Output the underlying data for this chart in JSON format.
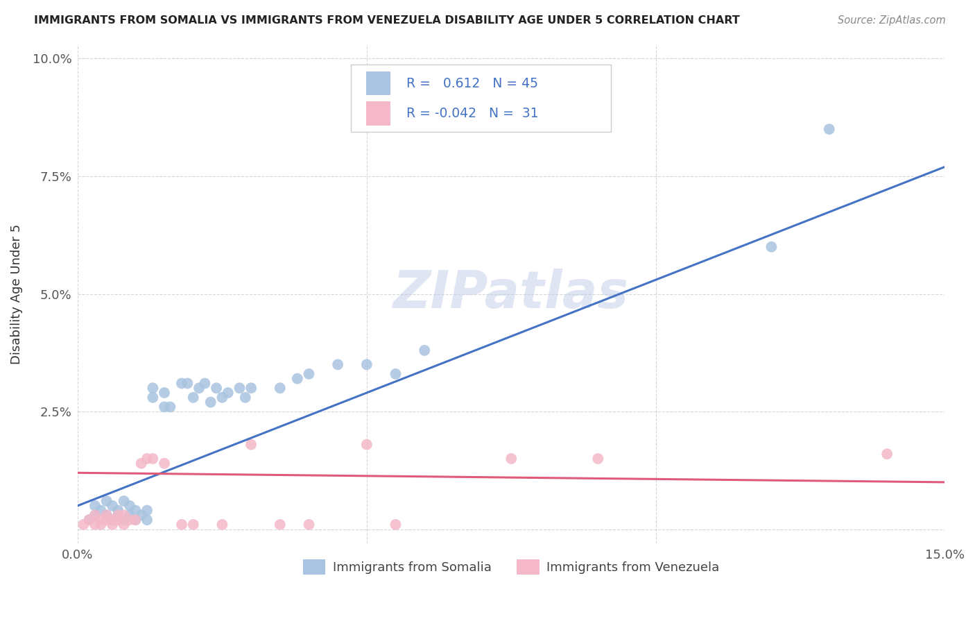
{
  "title": "IMMIGRANTS FROM SOMALIA VS IMMIGRANTS FROM VENEZUELA DISABILITY AGE UNDER 5 CORRELATION CHART",
  "source": "Source: ZipAtlas.com",
  "ylabel": "Disability Age Under 5",
  "xlim": [
    0.0,
    0.15
  ],
  "ylim": [
    -0.003,
    0.103
  ],
  "somalia_R": 0.612,
  "somalia_N": 45,
  "venezuela_R": -0.042,
  "venezuela_N": 31,
  "somalia_color": "#a8c4e0",
  "venezuela_color": "#f4b8c8",
  "somalia_line_color": "#4472c4",
  "venezuela_line_color": "#e05a7a",
  "watermark_text": "ZIPatlas",
  "watermark_color": "#c0cce8",
  "somalia_scatter": [
    [
      0.002,
      0.002
    ],
    [
      0.003,
      0.003
    ],
    [
      0.003,
      0.005
    ],
    [
      0.004,
      0.004
    ],
    [
      0.005,
      0.003
    ],
    [
      0.005,
      0.006
    ],
    [
      0.006,
      0.002
    ],
    [
      0.006,
      0.005
    ],
    [
      0.007,
      0.003
    ],
    [
      0.007,
      0.004
    ],
    [
      0.008,
      0.002
    ],
    [
      0.008,
      0.006
    ],
    [
      0.009,
      0.003
    ],
    [
      0.009,
      0.005
    ],
    [
      0.01,
      0.002
    ],
    [
      0.01,
      0.004
    ],
    [
      0.011,
      0.003
    ],
    [
      0.012,
      0.002
    ],
    [
      0.012,
      0.004
    ],
    [
      0.013,
      0.028
    ],
    [
      0.013,
      0.03
    ],
    [
      0.015,
      0.026
    ],
    [
      0.015,
      0.029
    ],
    [
      0.016,
      0.026
    ],
    [
      0.018,
      0.031
    ],
    [
      0.019,
      0.031
    ],
    [
      0.02,
      0.028
    ],
    [
      0.021,
      0.03
    ],
    [
      0.022,
      0.031
    ],
    [
      0.023,
      0.027
    ],
    [
      0.024,
      0.03
    ],
    [
      0.025,
      0.028
    ],
    [
      0.026,
      0.029
    ],
    [
      0.028,
      0.03
    ],
    [
      0.029,
      0.028
    ],
    [
      0.03,
      0.03
    ],
    [
      0.035,
      0.03
    ],
    [
      0.038,
      0.032
    ],
    [
      0.04,
      0.033
    ],
    [
      0.045,
      0.035
    ],
    [
      0.05,
      0.035
    ],
    [
      0.055,
      0.033
    ],
    [
      0.06,
      0.038
    ],
    [
      0.12,
      0.06
    ],
    [
      0.13,
      0.085
    ]
  ],
  "venezuela_scatter": [
    [
      0.001,
      0.001
    ],
    [
      0.002,
      0.002
    ],
    [
      0.003,
      0.001
    ],
    [
      0.003,
      0.003
    ],
    [
      0.004,
      0.002
    ],
    [
      0.004,
      0.001
    ],
    [
      0.005,
      0.002
    ],
    [
      0.005,
      0.003
    ],
    [
      0.006,
      0.001
    ],
    [
      0.006,
      0.002
    ],
    [
      0.007,
      0.002
    ],
    [
      0.007,
      0.003
    ],
    [
      0.008,
      0.001
    ],
    [
      0.008,
      0.003
    ],
    [
      0.009,
      0.002
    ],
    [
      0.01,
      0.002
    ],
    [
      0.011,
      0.014
    ],
    [
      0.012,
      0.015
    ],
    [
      0.013,
      0.015
    ],
    [
      0.015,
      0.014
    ],
    [
      0.018,
      0.001
    ],
    [
      0.02,
      0.001
    ],
    [
      0.025,
      0.001
    ],
    [
      0.03,
      0.018
    ],
    [
      0.035,
      0.001
    ],
    [
      0.04,
      0.001
    ],
    [
      0.05,
      0.018
    ],
    [
      0.055,
      0.001
    ],
    [
      0.075,
      0.015
    ],
    [
      0.09,
      0.015
    ],
    [
      0.14,
      0.016
    ]
  ],
  "somalia_line": [
    0.0,
    0.15
  ],
  "somalia_line_y": [
    0.005,
    0.077
  ],
  "venezuela_line": [
    0.0,
    0.15
  ],
  "venezuela_line_y": [
    0.012,
    0.01
  ]
}
